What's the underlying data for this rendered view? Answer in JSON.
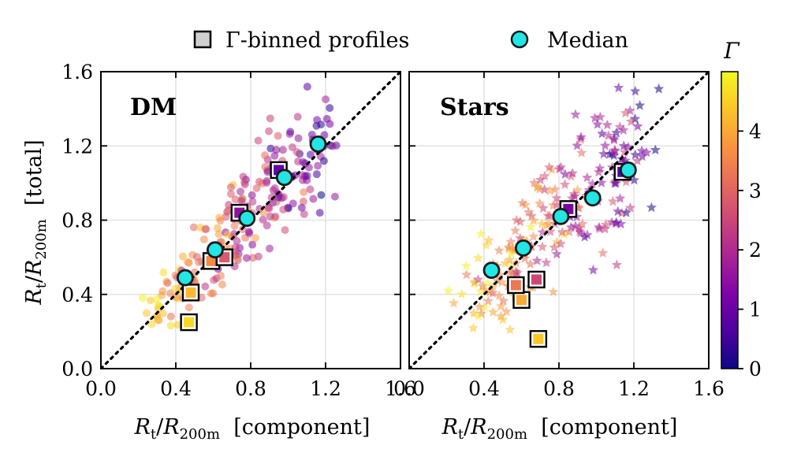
{
  "legend": {
    "binned_label": "Γ-binned profiles",
    "median_label": "Median"
  },
  "colorbar": {
    "label": "Γ",
    "range": [
      0,
      5
    ],
    "colormap": "plasma",
    "ticks": [
      {
        "value": 0,
        "label": "0"
      },
      {
        "value": 1,
        "label": "1"
      },
      {
        "value": 2,
        "label": "2"
      },
      {
        "value": 3,
        "label": "3"
      },
      {
        "value": 4,
        "label": "4"
      }
    ]
  },
  "colors": {
    "median_fill": "#22e6e6",
    "median_edge": "#1a1a1a",
    "grid": "#e2e2e2",
    "diagonal": "#000000"
  },
  "chart_data": [
    {
      "type": "scatter",
      "title": "DM",
      "marker": "circle",
      "xlabel": "R_t/R_200m [component]",
      "ylabel": "R_t/R_200m [total]",
      "xlim": [
        0.0,
        1.6
      ],
      "ylim": [
        0.0,
        1.6
      ],
      "x_ticks": [
        "0.0",
        "0.4",
        "0.8",
        "1.2",
        "1.6"
      ],
      "y_ticks": [
        "0.0",
        "0.4",
        "0.8",
        "1.2",
        "1.6"
      ],
      "grid": true,
      "one_to_one_line": true,
      "medians": [
        [
          0.45,
          0.49
        ],
        [
          0.61,
          0.64
        ],
        [
          0.78,
          0.81
        ],
        [
          0.98,
          1.03
        ],
        [
          1.16,
          1.21
        ]
      ],
      "binned_profiles": [
        {
          "x": 0.47,
          "y": 0.25,
          "gamma": 4.6
        },
        {
          "x": 0.48,
          "y": 0.41,
          "gamma": 4.2
        },
        {
          "x": 0.59,
          "y": 0.58,
          "gamma": 3.6
        },
        {
          "x": 0.66,
          "y": 0.6,
          "gamma": 2.8
        },
        {
          "x": 0.74,
          "y": 0.84,
          "gamma": 1.5
        },
        {
          "x": 0.95,
          "y": 1.07,
          "gamma": 0.9
        }
      ],
      "scatter_seed": 11
    },
    {
      "type": "scatter",
      "title": "Stars",
      "marker": "star",
      "xlabel": "R_t/R_200m [component]",
      "ylabel": "",
      "xlim": [
        0.0,
        1.6
      ],
      "ylim": [
        0.0,
        1.6
      ],
      "x_ticks": [
        "0.0",
        "0.4",
        "0.8",
        "1.2",
        "1.6"
      ],
      "y_ticks": [],
      "grid": true,
      "one_to_one_line": true,
      "medians": [
        [
          0.44,
          0.53
        ],
        [
          0.61,
          0.65
        ],
        [
          0.81,
          0.82
        ],
        [
          0.98,
          0.92
        ],
        [
          1.17,
          1.07
        ]
      ],
      "binned_profiles": [
        {
          "x": 0.69,
          "y": 0.16,
          "gamma": 4.4
        },
        {
          "x": 0.6,
          "y": 0.37,
          "gamma": 4.0
        },
        {
          "x": 0.57,
          "y": 0.45,
          "gamma": 3.3
        },
        {
          "x": 0.68,
          "y": 0.48,
          "gamma": 2.5
        },
        {
          "x": 0.85,
          "y": 0.86,
          "gamma": 1.2
        },
        {
          "x": 1.14,
          "y": 1.06,
          "gamma": 0.8
        }
      ],
      "scatter_seed": 29
    }
  ]
}
